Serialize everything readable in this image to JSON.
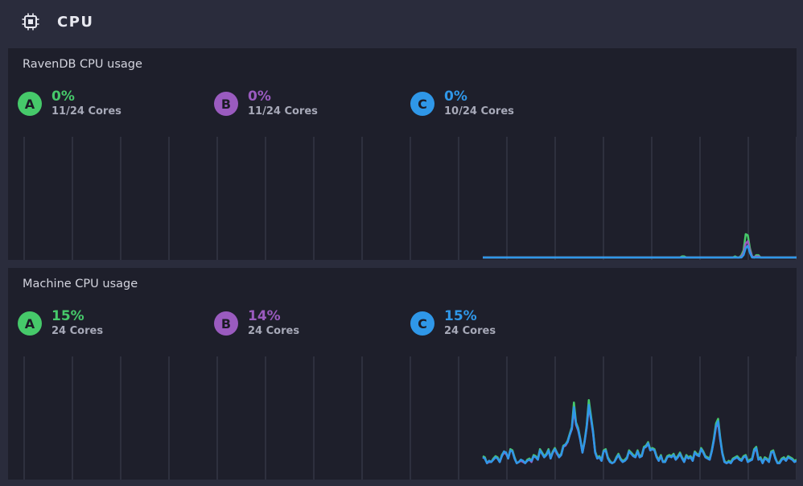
{
  "header": {
    "title": "CPU",
    "icon": "cpu-chip-icon"
  },
  "colors": {
    "a": "#46c96a",
    "b": "#9a5bbf",
    "c": "#2f97e8",
    "grid": "#3f4152",
    "bg": "#1e1f2b"
  },
  "panels": [
    {
      "title": "RavenDB CPU usage",
      "nodes": [
        {
          "tag": "A",
          "percent": "0%",
          "cores": "11/24 Cores"
        },
        {
          "tag": "B",
          "percent": "0%",
          "cores": "11/24 Cores"
        },
        {
          "tag": "C",
          "percent": "0%",
          "cores": "10/24 Cores"
        }
      ]
    },
    {
      "title": "Machine CPU usage",
      "nodes": [
        {
          "tag": "A",
          "percent": "15%",
          "cores": "24 Cores"
        },
        {
          "tag": "B",
          "percent": "14%",
          "cores": "24 Cores"
        },
        {
          "tag": "C",
          "percent": "15%",
          "cores": "24 Cores"
        }
      ]
    }
  ],
  "chart_data": [
    {
      "type": "line",
      "title": "RavenDB CPU usage",
      "ylim": [
        0,
        100
      ],
      "series": [
        {
          "name": "A",
          "values": [
            0,
            0,
            0,
            0,
            0,
            0,
            0,
            0,
            0,
            0,
            0,
            0,
            0,
            0,
            0,
            0,
            0,
            0,
            0,
            0,
            0,
            0,
            0,
            0,
            0,
            0,
            0,
            0,
            0,
            0,
            0,
            0,
            0,
            0,
            0,
            0,
            0,
            0,
            0,
            0,
            0,
            0,
            0,
            0,
            0,
            0,
            0,
            0,
            0,
            0,
            0,
            0,
            0,
            0,
            0,
            0,
            0,
            0,
            0,
            0,
            0,
            0,
            0,
            0,
            0,
            0,
            0,
            0,
            0,
            0,
            0,
            0,
            0,
            0,
            0,
            0,
            0,
            0,
            0,
            0,
            0,
            0,
            0,
            0,
            0,
            0,
            0,
            0,
            0,
            0,
            0,
            0,
            0,
            0,
            1,
            1,
            0,
            0,
            0,
            0,
            0,
            0,
            0,
            0,
            0,
            0,
            0,
            0,
            0,
            0,
            0,
            0,
            0,
            0,
            0,
            0,
            0,
            0,
            0,
            1,
            0,
            0,
            2,
            6,
            20,
            19,
            8,
            1,
            0,
            2,
            2,
            0,
            0,
            0,
            0,
            0,
            0,
            0,
            0,
            0,
            0,
            0,
            0,
            0,
            0,
            0,
            0,
            0,
            0
          ]
        },
        {
          "name": "B",
          "values": [
            0,
            0,
            0,
            0,
            0,
            0,
            0,
            0,
            0,
            0,
            0,
            0,
            0,
            0,
            0,
            0,
            0,
            0,
            0,
            0,
            0,
            0,
            0,
            0,
            0,
            0,
            0,
            0,
            0,
            0,
            0,
            0,
            0,
            0,
            0,
            0,
            0,
            0,
            0,
            0,
            0,
            0,
            0,
            0,
            0,
            0,
            0,
            0,
            0,
            0,
            0,
            0,
            0,
            0,
            0,
            0,
            0,
            0,
            0,
            0,
            0,
            0,
            0,
            0,
            0,
            0,
            0,
            0,
            0,
            0,
            0,
            0,
            0,
            0,
            0,
            0,
            0,
            0,
            0,
            0,
            0,
            0,
            0,
            0,
            0,
            0,
            0,
            0,
            0,
            0,
            0,
            0,
            0,
            0,
            0,
            0,
            0,
            0,
            0,
            0,
            0,
            0,
            0,
            0,
            0,
            0,
            0,
            0,
            0,
            0,
            0,
            0,
            0,
            0,
            0,
            0,
            0,
            0,
            0,
            0,
            0,
            0,
            1,
            4,
            12,
            14,
            6,
            1,
            0,
            1,
            1,
            0,
            0,
            0,
            0,
            0,
            0,
            0,
            0,
            0,
            0,
            0,
            0,
            0,
            0,
            0,
            0,
            0,
            0
          ]
        },
        {
          "name": "C",
          "values": [
            0,
            0,
            0,
            0,
            0,
            0,
            0,
            0,
            0,
            0,
            0,
            0,
            0,
            0,
            0,
            0,
            0,
            0,
            0,
            0,
            0,
            0,
            0,
            0,
            0,
            0,
            0,
            0,
            0,
            0,
            0,
            0,
            0,
            0,
            0,
            0,
            0,
            0,
            0,
            0,
            0,
            0,
            0,
            0,
            0,
            0,
            0,
            0,
            0,
            0,
            0,
            0,
            0,
            0,
            0,
            0,
            0,
            0,
            0,
            0,
            0,
            0,
            0,
            0,
            0,
            0,
            0,
            0,
            0,
            0,
            0,
            0,
            0,
            0,
            0,
            0,
            0,
            0,
            0,
            0,
            0,
            0,
            0,
            0,
            0,
            0,
            0,
            0,
            0,
            0,
            0,
            0,
            0,
            0,
            0,
            0,
            0,
            0,
            0,
            0,
            0,
            0,
            0,
            0,
            0,
            0,
            0,
            0,
            0,
            0,
            0,
            0,
            0,
            0,
            0,
            0,
            0,
            0,
            0,
            0,
            0,
            0,
            0,
            2,
            8,
            10,
            4,
            0,
            0,
            0,
            0,
            0,
            0,
            0,
            0,
            0,
            0,
            0,
            0,
            0,
            0,
            0,
            0,
            0,
            0,
            0,
            0,
            0,
            0
          ]
        }
      ]
    },
    {
      "type": "line",
      "title": "Machine CPU usage",
      "ylim": [
        0,
        100
      ],
      "series": [
        {
          "name": "A",
          "values": [
            18,
            17,
            12,
            14,
            13,
            16,
            18,
            17,
            13,
            19,
            22,
            21,
            16,
            24,
            23,
            17,
            12,
            13,
            15,
            14,
            12,
            15,
            16,
            14,
            19,
            18,
            16,
            24,
            21,
            18,
            20,
            24,
            17,
            22,
            25,
            21,
            18,
            20,
            27,
            28,
            31,
            37,
            43,
            64,
            47,
            42,
            33,
            22,
            31,
            44,
            66,
            53,
            40,
            22,
            17,
            18,
            15,
            23,
            24,
            17,
            14,
            12,
            13,
            17,
            20,
            16,
            14,
            15,
            17,
            23,
            21,
            19,
            18,
            23,
            18,
            19,
            26,
            27,
            30,
            24,
            25,
            24,
            18,
            15,
            19,
            13,
            14,
            18,
            19,
            18,
            20,
            16,
            18,
            21,
            17,
            14,
            19,
            17,
            18,
            15,
            22,
            20,
            19,
            25,
            22,
            18,
            17,
            16,
            23,
            33,
            46,
            50,
            34,
            21,
            14,
            12,
            14,
            13,
            16,
            17,
            18,
            16,
            15,
            18,
            19,
            14,
            15,
            16,
            24,
            26,
            16,
            17,
            13,
            17,
            16,
            14,
            22,
            23,
            17,
            12,
            13,
            16,
            17,
            15,
            18,
            17,
            16,
            14,
            15
          ]
        },
        {
          "name": "B",
          "values": [
            17,
            16,
            12,
            13,
            13,
            15,
            17,
            16,
            13,
            18,
            21,
            20,
            16,
            23,
            22,
            16,
            12,
            13,
            14,
            13,
            12,
            14,
            15,
            13,
            18,
            17,
            15,
            23,
            20,
            17,
            19,
            23,
            16,
            21,
            24,
            20,
            17,
            19,
            26,
            27,
            30,
            36,
            41,
            58,
            45,
            40,
            32,
            21,
            30,
            42,
            60,
            50,
            38,
            21,
            16,
            17,
            14,
            22,
            23,
            16,
            13,
            12,
            13,
            16,
            19,
            15,
            13,
            14,
            16,
            22,
            20,
            18,
            17,
            22,
            17,
            18,
            25,
            26,
            29,
            23,
            24,
            23,
            17,
            14,
            18,
            13,
            13,
            17,
            18,
            17,
            19,
            15,
            17,
            20,
            16,
            13,
            18,
            16,
            17,
            14,
            21,
            19,
            18,
            24,
            21,
            17,
            16,
            15,
            22,
            31,
            43,
            46,
            32,
            20,
            13,
            12,
            13,
            12,
            15,
            16,
            17,
            15,
            14,
            17,
            18,
            13,
            14,
            15,
            22,
            24,
            15,
            16,
            12,
            16,
            15,
            13,
            21,
            22,
            16,
            12,
            12,
            15,
            16,
            14,
            17,
            16,
            15,
            13,
            14
          ]
        },
        {
          "name": "C",
          "values": [
            17,
            16,
            12,
            14,
            13,
            15,
            17,
            16,
            13,
            18,
            22,
            21,
            16,
            23,
            22,
            16,
            12,
            13,
            15,
            14,
            12,
            14,
            15,
            14,
            18,
            17,
            15,
            23,
            20,
            17,
            19,
            23,
            16,
            21,
            24,
            21,
            17,
            19,
            26,
            28,
            30,
            36,
            42,
            60,
            46,
            41,
            32,
            21,
            30,
            43,
            62,
            51,
            39,
            21,
            16,
            17,
            14,
            22,
            23,
            16,
            13,
            12,
            13,
            16,
            19,
            15,
            13,
            14,
            16,
            22,
            20,
            18,
            17,
            22,
            17,
            18,
            25,
            26,
            29,
            23,
            24,
            23,
            17,
            14,
            18,
            13,
            13,
            17,
            18,
            17,
            19,
            15,
            17,
            20,
            16,
            13,
            18,
            16,
            17,
            14,
            21,
            19,
            18,
            24,
            21,
            17,
            16,
            15,
            22,
            32,
            44,
            48,
            33,
            20,
            13,
            12,
            13,
            12,
            15,
            16,
            17,
            15,
            14,
            17,
            18,
            13,
            14,
            15,
            23,
            25,
            15,
            16,
            12,
            16,
            15,
            13,
            21,
            22,
            16,
            12,
            12,
            15,
            16,
            14,
            17,
            16,
            15,
            13,
            14
          ]
        }
      ]
    }
  ]
}
